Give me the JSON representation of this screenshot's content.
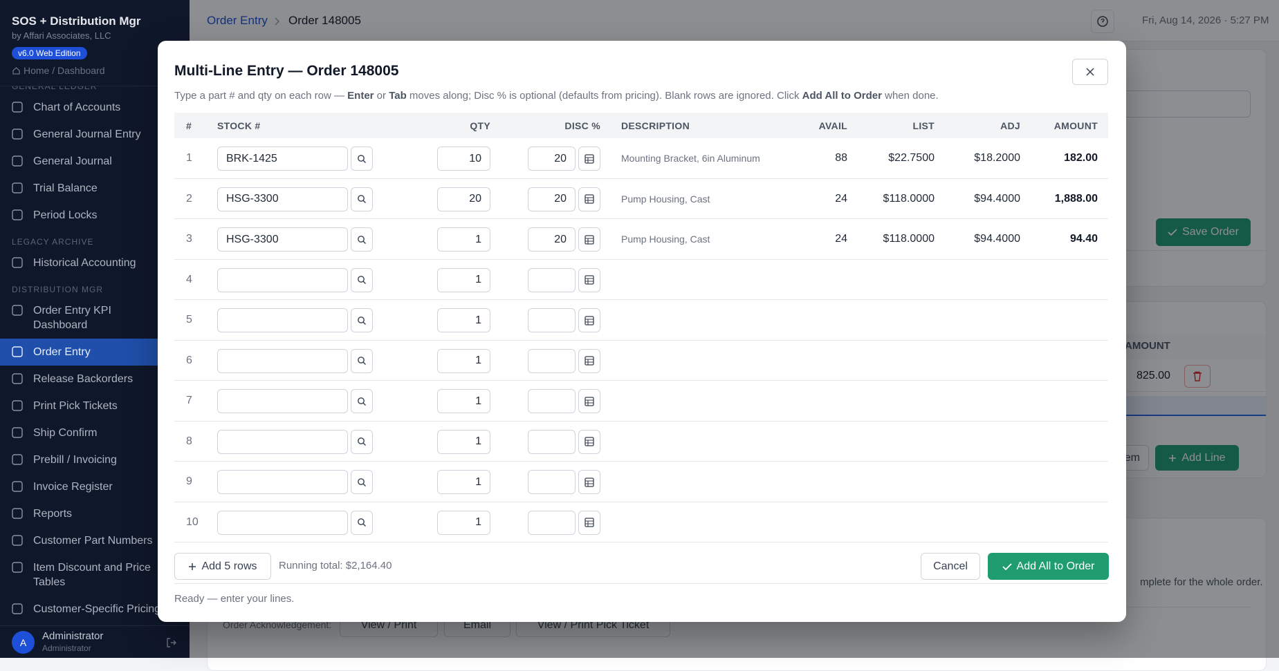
{
  "sidebar": {
    "app_title": "SOS + Distribution Mgr",
    "company": "by Affari Associates, LLC",
    "version": "v6.0 Web Edition",
    "home_link": "Home / Dashboard",
    "nav": [
      {
        "section": "GENERAL LEDGER"
      },
      {
        "label": "Chart of Accounts"
      },
      {
        "label": "General Journal Entry"
      },
      {
        "label": "General Journal"
      },
      {
        "label": "Trial Balance"
      },
      {
        "label": "Period Locks"
      },
      {
        "section": "LEGACY ARCHIVE"
      },
      {
        "label": "Historical Accounting"
      },
      {
        "section": "DISTRIBUTION MGR"
      },
      {
        "label": "Order Entry KPI Dashboard"
      },
      {
        "label": "Order Entry",
        "active": true
      },
      {
        "label": "Release Backorders"
      },
      {
        "label": "Print Pick Tickets"
      },
      {
        "label": "Ship Confirm"
      },
      {
        "label": "Prebill / Invoicing"
      },
      {
        "label": "Invoice Register"
      },
      {
        "label": "Reports"
      },
      {
        "label": "Customer Part Numbers"
      },
      {
        "label": "Item Discount and Price Tables"
      },
      {
        "label": "Customer-Specific Pricing"
      }
    ],
    "user": {
      "initial": "A",
      "name": "Administrator",
      "role": "Administrator"
    }
  },
  "topbar": {
    "breadcrumb": [
      "Order Entry",
      "Order 148005"
    ],
    "datetime": "Fri, Aug 14, 2026 · 5:27 PM"
  },
  "background": {
    "save_order": "Save Order",
    "amount_header": "AMOUNT",
    "line_amount": "825.00",
    "add_item": "k Item",
    "add_line": "Add Line",
    "note": "mplete for the whole order.",
    "ack_label": "Order Acknowledgement:",
    "ack_buttons": [
      "View / Print",
      "Email",
      "View / Print Pick Ticket"
    ]
  },
  "modal": {
    "title": "Multi-Line Entry — Order 148005",
    "instructions": [
      {
        "text": "Type a part # and qty on each row — "
      },
      {
        "text": "Enter",
        "bold": true
      },
      {
        "text": " or "
      },
      {
        "text": "Tab",
        "bold": true
      },
      {
        "text": " moves along; Disc % is optional (defaults from pricing). Blank rows are ignored. Click "
      },
      {
        "text": "Add All to Order",
        "bold": true
      },
      {
        "text": " when done."
      }
    ],
    "columns": [
      "#",
      "STOCK #",
      "QTY",
      "DISC %",
      "DESCRIPTION",
      "AVAIL",
      "LIST",
      "ADJ",
      "AMOUNT"
    ],
    "rows": [
      {
        "num": 1,
        "stock": "BRK-1425",
        "qty": 10,
        "disc": 20,
        "description": "Mounting Bracket, 6in Aluminum",
        "avail": 88,
        "list": "$22.7500",
        "adj": "$18.2000",
        "amount": "182.00"
      },
      {
        "num": 2,
        "stock": "HSG-3300",
        "qty": 20,
        "disc": 20,
        "description": "Pump Housing, Cast",
        "avail": 24,
        "list": "$118.0000",
        "adj": "$94.4000",
        "amount": "1,888.00"
      },
      {
        "num": 3,
        "stock": "HSG-3300",
        "qty": 1,
        "disc": 20,
        "description": "Pump Housing, Cast",
        "avail": 24,
        "list": "$118.0000",
        "adj": "$94.4000",
        "amount": "94.40"
      },
      {
        "num": 4,
        "qty": 1
      },
      {
        "num": 5,
        "qty": 1
      },
      {
        "num": 6,
        "qty": 1
      },
      {
        "num": 7,
        "qty": 1
      },
      {
        "num": 8,
        "qty": 1
      },
      {
        "num": 9,
        "qty": 1
      },
      {
        "num": 10,
        "qty": 1
      }
    ],
    "add_rows": "Add 5 rows",
    "running_total": "Running total: $2,164.40",
    "cancel": "Cancel",
    "add_all": "Add All to Order",
    "status": "Ready — enter your lines."
  }
}
